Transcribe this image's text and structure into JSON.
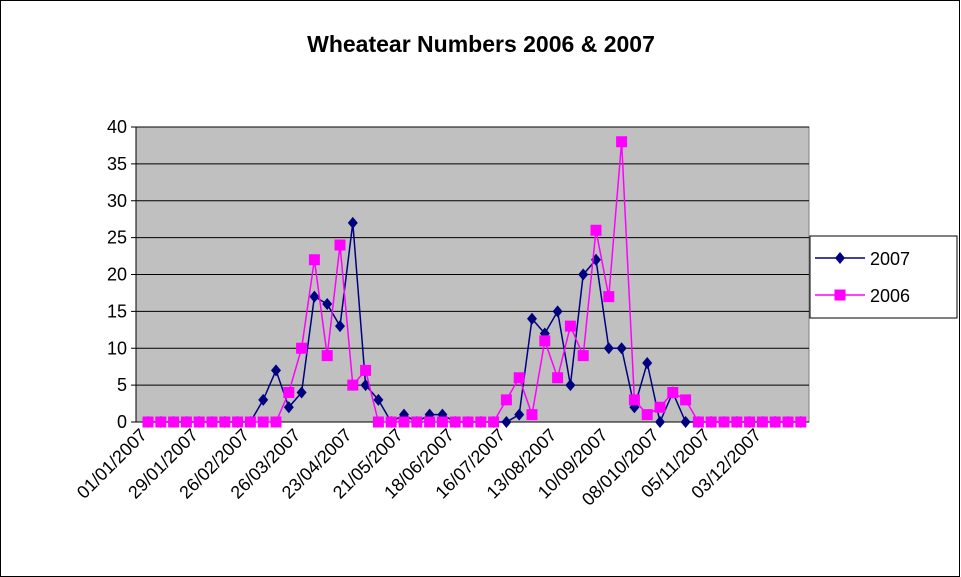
{
  "chart_data": {
    "type": "line",
    "title": "Wheatear Numbers 2006 & 2007",
    "categories": [
      "01/01/2007",
      null,
      null,
      null,
      "29/01/2007",
      null,
      null,
      null,
      "26/02/2007",
      null,
      null,
      null,
      "26/03/2007",
      null,
      null,
      null,
      "23/04/2007",
      null,
      null,
      null,
      "21/05/2007",
      null,
      null,
      null,
      "18/06/2007",
      null,
      null,
      null,
      "16/07/2007",
      null,
      null,
      null,
      "13/08/2007",
      null,
      null,
      null,
      "10/09/2007",
      null,
      null,
      null,
      "08/010/2007",
      null,
      null,
      null,
      "05/11/2007",
      null,
      null,
      null,
      "03/12/2007",
      null,
      null,
      null
    ],
    "series": [
      {
        "name": "2007",
        "color": "#000080",
        "marker": "diamond",
        "values": [
          0,
          0,
          0,
          0,
          0,
          0,
          0,
          0,
          0,
          3,
          7,
          2,
          4,
          17,
          16,
          13,
          27,
          5,
          3,
          0,
          1,
          0,
          1,
          1,
          0,
          0,
          0,
          0,
          0,
          1,
          14,
          12,
          15,
          5,
          20,
          22,
          10,
          10,
          2,
          8,
          0,
          4,
          0,
          0,
          0,
          0,
          0,
          0,
          0,
          0,
          0,
          0
        ]
      },
      {
        "name": "2006",
        "color": "#ff00ff",
        "marker": "square",
        "values": [
          0,
          0,
          0,
          0,
          0,
          0,
          0,
          0,
          0,
          0,
          0,
          4,
          10,
          22,
          9,
          24,
          5,
          7,
          0,
          0,
          0,
          0,
          0,
          0,
          0,
          0,
          0,
          0,
          3,
          6,
          1,
          11,
          6,
          13,
          9,
          26,
          17,
          38,
          3,
          1,
          2,
          4,
          3,
          0,
          0,
          0,
          0,
          0,
          0,
          0,
          0,
          0
        ]
      }
    ],
    "ylim": [
      0,
      40
    ],
    "yticks": [
      0,
      5,
      10,
      15,
      20,
      25,
      30,
      35,
      40
    ],
    "grid": true,
    "legend": "right"
  }
}
